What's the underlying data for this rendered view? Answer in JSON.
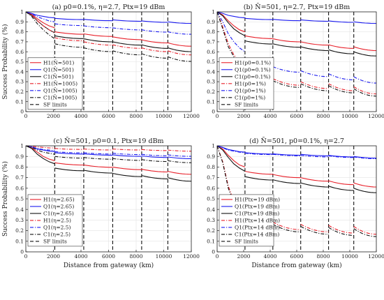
{
  "ylabel": "Success Probability (%)",
  "xlabel": "Distance from gateway (km)",
  "colors": {
    "red": "#e8202a",
    "blue": "#1a1af0",
    "black": "#111111"
  },
  "chart_data": [
    {
      "type": "line",
      "title": "(a) p0=0.1%, η=2.7, Ptx=19 dBm",
      "xlim": [
        0,
        12000
      ],
      "ylim": [
        0,
        1
      ],
      "xticks": [
        0,
        2000,
        4000,
        6000,
        8000,
        10000,
        12000
      ],
      "yticks": [
        0,
        0.1,
        0.2,
        0.3,
        0.4,
        0.5,
        0.6,
        0.7,
        0.8,
        0.9,
        1
      ],
      "sf_limits": [
        2100,
        4200,
        6300,
        8400,
        10300
      ],
      "legend": [
        "H1(N̄=501)",
        "Q1(N̄=501)",
        "C1(N̄=501)",
        "H1(N̄=1005)",
        "Q1(N̄=1005)",
        "C1(N̄=1005)",
        "SF limits"
      ],
      "series": [
        {
          "name": "H1(N̄=501)",
          "color": "red",
          "dash": "solid",
          "start": [
            1,
            0.975,
            0.93,
            0.89,
            0.86,
            0.84
          ],
          "after_jump": [
            0.8,
            0.78,
            0.75,
            0.72,
            0.69
          ]
        },
        {
          "name": "Q1(N̄=501)",
          "color": "blue",
          "dash": "solid",
          "start": [
            1,
            0.985,
            0.965,
            0.955,
            0.945,
            0.94
          ],
          "after_jump": [
            0.935,
            0.925,
            0.92,
            0.91,
            0.9
          ]
        },
        {
          "name": "C1(N̄=501)",
          "color": "black",
          "dash": "solid",
          "start": [
            1,
            0.965,
            0.91,
            0.86,
            0.82,
            0.79
          ],
          "after_jump": [
            0.76,
            0.73,
            0.7,
            0.67,
            0.64
          ]
        },
        {
          "name": "H1(N̄=1005)",
          "color": "red",
          "dash": "dashdot",
          "start": [
            1,
            0.97,
            0.91,
            0.86,
            0.82,
            0.79
          ],
          "after_jump": [
            0.74,
            0.7,
            0.67,
            0.64,
            0.61
          ]
        },
        {
          "name": "Q1(N̄=1005)",
          "color": "blue",
          "dash": "dashdot",
          "start": [
            1,
            0.98,
            0.95,
            0.93,
            0.91,
            0.9
          ],
          "after_jump": [
            0.88,
            0.86,
            0.84,
            0.82,
            0.8
          ]
        },
        {
          "name": "C1(N̄=1005)",
          "color": "black",
          "dash": "dashdot",
          "start": [
            1,
            0.955,
            0.88,
            0.82,
            0.77,
            0.73
          ],
          "after_jump": [
            0.68,
            0.64,
            0.61,
            0.58,
            0.55
          ]
        }
      ]
    },
    {
      "type": "line",
      "title": "(b) N̄=501, η=2.7, Ptx=19 dBm",
      "xlim": [
        0,
        12000
      ],
      "ylim": [
        0,
        1
      ],
      "xticks": [
        0,
        2000,
        4000,
        6000,
        8000,
        10000,
        12000
      ],
      "yticks": [
        0,
        0.1,
        0.2,
        0.3,
        0.4,
        0.5,
        0.6,
        0.7,
        0.8,
        0.9,
        1
      ],
      "sf_limits": [
        2100,
        4200,
        6300,
        8400,
        10300
      ],
      "legend": [
        "H1(p0=0.1%)",
        "Q1(p0=0.1%)",
        "C1(p0=0.1%)",
        "H1(p0=1%)",
        "Q1(p0=1%)",
        "C1(p0=1%)",
        "SF limits"
      ],
      "series": [
        {
          "name": "H1(p0=0.1%)",
          "color": "red",
          "dash": "solid",
          "start": [
            1,
            0.97,
            0.91,
            0.86,
            0.82,
            0.8
          ],
          "after_jump": [
            0.76,
            0.73,
            0.7,
            0.67,
            0.65
          ]
        },
        {
          "name": "Q1(p0=0.1%)",
          "color": "blue",
          "dash": "solid",
          "start": [
            1,
            0.985,
            0.965,
            0.955,
            0.945,
            0.94
          ],
          "after_jump": [
            0.935,
            0.925,
            0.92,
            0.91,
            0.9
          ]
        },
        {
          "name": "C1(p0=0.1%)",
          "color": "black",
          "dash": "solid",
          "start": [
            1,
            0.96,
            0.89,
            0.83,
            0.79,
            0.76
          ],
          "after_jump": [
            0.71,
            0.68,
            0.65,
            0.62,
            0.6
          ]
        },
        {
          "name": "H1(p0=1%)",
          "color": "red",
          "dash": "dashdot",
          "start": [
            1,
            0.85,
            0.68,
            0.57,
            0.5,
            0.46
          ],
          "after_jump": [
            0.37,
            0.33,
            0.3,
            0.28,
            0.25
          ]
        },
        {
          "name": "Q1(p0=1%)",
          "color": "blue",
          "dash": "dashdot",
          "start": [
            1,
            0.9,
            0.78,
            0.7,
            0.64,
            0.6
          ],
          "after_jump": [
            0.5,
            0.45,
            0.41,
            0.38,
            0.35
          ]
        },
        {
          "name": "C1(p0=1%)",
          "color": "black",
          "dash": "dashdot",
          "start": [
            1,
            0.83,
            0.65,
            0.55,
            0.48,
            0.44
          ],
          "after_jump": [
            0.35,
            0.31,
            0.28,
            0.26,
            0.23
          ]
        }
      ]
    },
    {
      "type": "line",
      "title": "(c) N̄=501, p0=0.1, Ptx=19 dBm",
      "xlim": [
        0,
        12000
      ],
      "ylim": [
        0,
        1
      ],
      "xticks": [
        0,
        2000,
        4000,
        6000,
        8000,
        10000,
        12000
      ],
      "yticks": [
        0,
        0.1,
        0.2,
        0.3,
        0.4,
        0.5,
        0.6,
        0.7,
        0.8,
        0.9,
        1
      ],
      "sf_limits": [
        2100,
        4200,
        6300,
        8400,
        10300
      ],
      "legend": [
        "H1(η=2.65)",
        "Q1(η=2.65)",
        "C1(η=2.65)",
        "H1(η=2.5)",
        "Q1(η=2.5)",
        "C1(η=2.5)",
        "SF limits"
      ],
      "series": [
        {
          "name": "H1(η=2.65)",
          "color": "red",
          "dash": "solid",
          "start": [
            1,
            0.98,
            0.94,
            0.9,
            0.875,
            0.86
          ],
          "after_jump": [
            0.84,
            0.82,
            0.8,
            0.78,
            0.76
          ]
        },
        {
          "name": "Q1(η=2.65)",
          "color": "blue",
          "dash": "solid",
          "start": [
            1,
            0.99,
            0.97,
            0.96,
            0.95,
            0.945
          ],
          "after_jump": [
            0.935,
            0.925,
            0.915,
            0.905,
            0.895
          ]
        },
        {
          "name": "C1(η=2.65)",
          "color": "black",
          "dash": "solid",
          "start": [
            1,
            0.975,
            0.92,
            0.88,
            0.85,
            0.83
          ],
          "after_jump": [
            0.79,
            0.77,
            0.74,
            0.72,
            0.7
          ]
        },
        {
          "name": "H1(η=2.5)",
          "color": "red",
          "dash": "dashdot",
          "start": [
            1,
            0.995,
            0.99,
            0.985,
            0.98,
            0.98
          ],
          "after_jump": [
            0.975,
            0.97,
            0.97,
            0.965,
            0.96
          ]
        },
        {
          "name": "Q1(η=2.5)",
          "color": "blue",
          "dash": "dashdot",
          "start": [
            1,
            0.99,
            0.975,
            0.965,
            0.96,
            0.955
          ],
          "after_jump": [
            0.945,
            0.935,
            0.93,
            0.92,
            0.915
          ]
        },
        {
          "name": "C1(η=2.5)",
          "color": "black",
          "dash": "dashdot",
          "start": [
            1,
            0.985,
            0.96,
            0.94,
            0.93,
            0.92
          ],
          "after_jump": [
            0.9,
            0.89,
            0.88,
            0.87,
            0.86
          ]
        }
      ]
    },
    {
      "type": "line",
      "title": "(d) N̄=501, p0=0.1%, η=2.7",
      "xlim": [
        0,
        12000
      ],
      "ylim": [
        0,
        1
      ],
      "xticks": [
        0,
        2000,
        4000,
        6000,
        8000,
        10000,
        12000
      ],
      "yticks": [
        0,
        0.1,
        0.2,
        0.3,
        0.4,
        0.5,
        0.6,
        0.7,
        0.8,
        0.9,
        1
      ],
      "sf_limits": [
        2100,
        4200,
        6300,
        8400,
        10300
      ],
      "legend": [
        "H1(Ptx=19 dBm)",
        "Q1(Ptx=19 dBm)",
        "C1(Ptx=19 dBm)",
        "H1(Ptx=14 dBm)",
        "Q1(Ptx=14 dBm)",
        "C1(Ptx=14 dBm)",
        "SF limits"
      ],
      "series": [
        {
          "name": "H1(Ptx=19 dBm)",
          "color": "red",
          "dash": "solid",
          "start": [
            1,
            0.97,
            0.91,
            0.86,
            0.82,
            0.8
          ],
          "after_jump": [
            0.76,
            0.73,
            0.7,
            0.67,
            0.65
          ]
        },
        {
          "name": "Q1(Ptx=19 dBm)",
          "color": "blue",
          "dash": "solid",
          "start": [
            1,
            0.985,
            0.965,
            0.955,
            0.945,
            0.94
          ],
          "after_jump": [
            0.935,
            0.925,
            0.92,
            0.91,
            0.9
          ]
        },
        {
          "name": "C1(Ptx=19 dBm)",
          "color": "black",
          "dash": "solid",
          "start": [
            1,
            0.96,
            0.89,
            0.83,
            0.79,
            0.76
          ],
          "after_jump": [
            0.71,
            0.68,
            0.65,
            0.62,
            0.6
          ]
        },
        {
          "name": "H1(Ptx=14 dBm)",
          "color": "red",
          "dash": "dashdot",
          "start": [
            1,
            0.85,
            0.62,
            0.48,
            0.4,
            0.35
          ],
          "after_jump": [
            0.3,
            0.28,
            0.26,
            0.25,
            0.24
          ]
        },
        {
          "name": "Q1(Ptx=14 dBm)",
          "color": "blue",
          "dash": "dashdot",
          "start": [
            1,
            0.98,
            0.96,
            0.95,
            0.94,
            0.935
          ],
          "after_jump": [
            0.93,
            0.92,
            0.91,
            0.905,
            0.895
          ]
        },
        {
          "name": "C1(Ptx=14 dBm)",
          "color": "black",
          "dash": "dashdot",
          "start": [
            1,
            0.84,
            0.6,
            0.46,
            0.38,
            0.33
          ],
          "after_jump": [
            0.28,
            0.26,
            0.24,
            0.23,
            0.22
          ]
        }
      ]
    }
  ]
}
